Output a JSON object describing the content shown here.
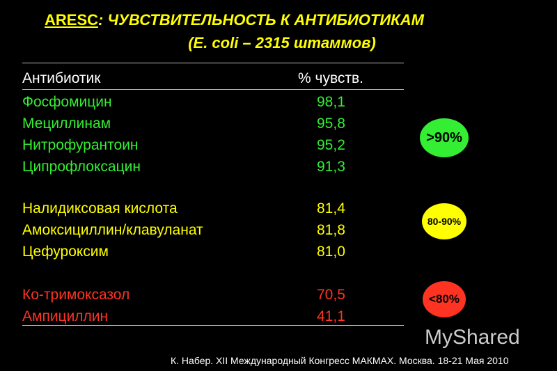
{
  "title": {
    "acronym": "ARESC",
    "text": ": ЧУВСТВИТЕЛЬНОСТЬ К АНТИБИОТИКАМ",
    "subtitle": "(E. coli – 2315 штаммов)"
  },
  "table": {
    "header": [
      "Антибиотик",
      "% чувств."
    ],
    "groups": [
      {
        "color": "#33ee33",
        "badge": ">90%",
        "rows": [
          [
            "Фосфомицин",
            "98,1"
          ],
          [
            "Мециллинам",
            "95,8"
          ],
          [
            "Нитрофурантоин",
            "95,2"
          ],
          [
            "Ципрофлоксацин",
            "91,3"
          ]
        ]
      },
      {
        "color": "#ffff00",
        "badge": "80-90%",
        "rows": [
          [
            "Налидиксовая кислота",
            "81,4"
          ],
          [
            "Амоксициллин/клавуланат",
            "81,8"
          ],
          [
            "Цефуроксим",
            "81,0"
          ]
        ]
      },
      {
        "color": "#ff3322",
        "badge": "<80%",
        "rows": [
          [
            "Ко-тримоксазол",
            "70,5"
          ],
          [
            "Ампициллин",
            "41,1"
          ]
        ]
      }
    ]
  },
  "footer": "К. Набер. XII Международный Конгресс МАКМАХ. Москва. 18-21 Мая 2010",
  "watermark": "MyShared"
}
